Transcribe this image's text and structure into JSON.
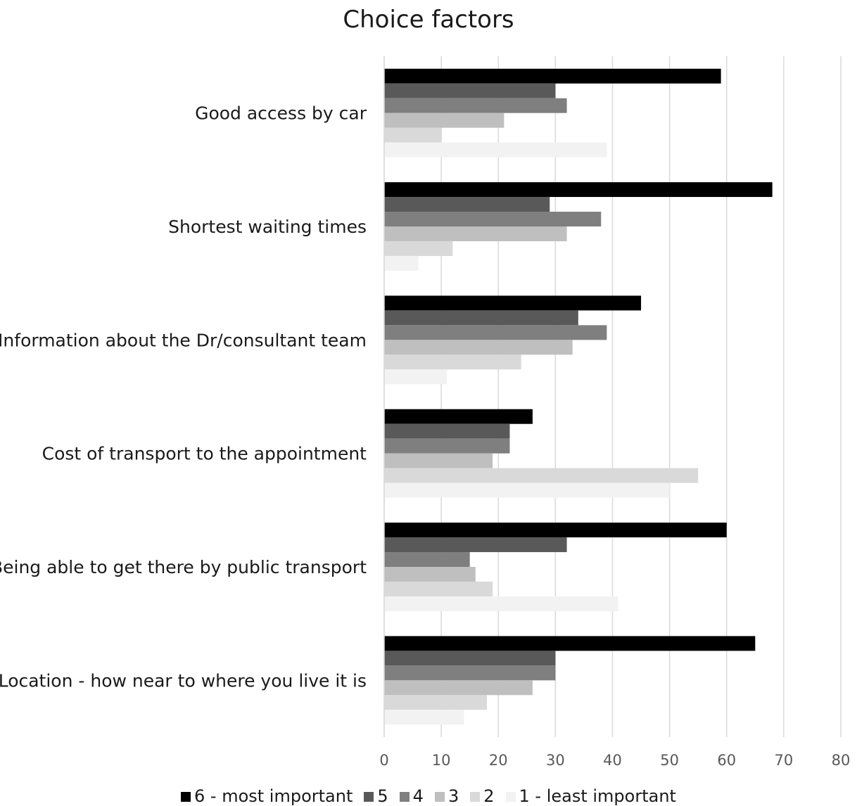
{
  "chart_data": {
    "type": "bar",
    "orientation": "horizontal",
    "title": "Choice factors",
    "xlabel": "",
    "ylabel": "",
    "xlim": [
      0,
      80
    ],
    "x_ticks": [
      0,
      10,
      20,
      30,
      40,
      50,
      60,
      70,
      80
    ],
    "grid": true,
    "legend_position": "bottom",
    "categories": [
      "Good access by car",
      "Shortest waiting times",
      "Information about the Dr/consultant team",
      "Cost of transport to the appointment",
      "Being able to get there by public transport",
      "Location - how near to where you live it is"
    ],
    "series": [
      {
        "name": "6 - most important",
        "color": "#000000",
        "values": [
          59,
          68,
          45,
          26,
          60,
          65
        ]
      },
      {
        "name": "5",
        "color": "#595959",
        "values": [
          30,
          29,
          34,
          22,
          32,
          30
        ]
      },
      {
        "name": "4",
        "color": "#7f7f7f",
        "values": [
          32,
          38,
          39,
          22,
          15,
          30
        ]
      },
      {
        "name": "3",
        "color": "#bfbfbf",
        "values": [
          21,
          32,
          33,
          19,
          16,
          26
        ]
      },
      {
        "name": "2",
        "color": "#d9d9d9",
        "values": [
          10,
          12,
          24,
          55,
          19,
          18
        ]
      },
      {
        "name": "1 - least important",
        "color": "#f2f2f2",
        "values": [
          39,
          6,
          11,
          50,
          41,
          14
        ]
      }
    ]
  }
}
